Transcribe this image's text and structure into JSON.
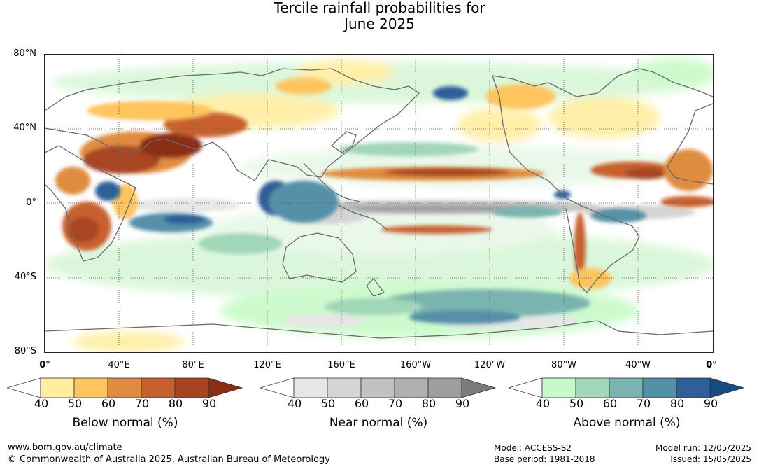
{
  "title_line1": "Tercile rainfall probabilities for",
  "title_line2": "June 2025",
  "lat_labels": [
    "80°N",
    "40°N",
    "0°",
    "40°S",
    "80°S"
  ],
  "lon_labels": [
    "0°",
    "40°E",
    "80°E",
    "120°E",
    "160°E",
    "160°W",
    "120°W",
    "80°W",
    "40°W",
    "0°"
  ],
  "colorbars": [
    {
      "label": "Below normal (%)",
      "ticks": [
        "40",
        "50",
        "60",
        "70",
        "80",
        "90"
      ],
      "colors": [
        "#ffffff",
        "#ffeea0",
        "#fec55e",
        "#e08c40",
        "#c8602e",
        "#a84420",
        "#8a2d14"
      ]
    },
    {
      "label": "Near normal (%)",
      "ticks": [
        "40",
        "50",
        "60",
        "70",
        "80",
        "90"
      ],
      "colors": [
        "#ffffff",
        "#e6e6e6",
        "#d4d4d4",
        "#c2c2c2",
        "#b0b0b0",
        "#9e9e9e",
        "#7c7c7c"
      ]
    },
    {
      "label": "Above normal (%)",
      "ticks": [
        "40",
        "50",
        "60",
        "70",
        "80",
        "90"
      ],
      "colors": [
        "#ffffff",
        "#c8fac8",
        "#a2d6b8",
        "#7ab4b0",
        "#5490a8",
        "#2f5f98",
        "#174a80"
      ]
    }
  ],
  "footer": {
    "url": "www.bom.gov.au/climate",
    "copyright": "© Commonwealth of Australia 2025, Australian Bureau of Meteorology",
    "model": "Model: ACCESS-S2",
    "base_period": "Base period: 1981-2018",
    "model_run": "Model run: 12/05/2025",
    "issued": "Issued: 15/05/2025"
  }
}
